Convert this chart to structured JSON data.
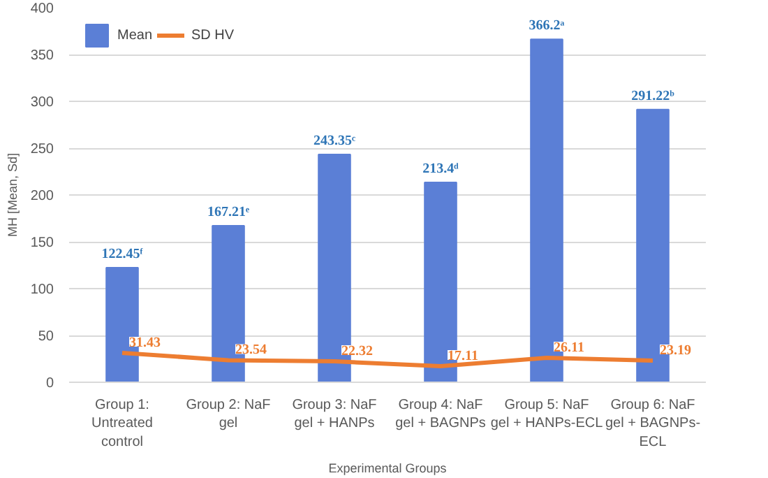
{
  "chart_data": {
    "type": "bar",
    "xlabel": "Experimental Groups",
    "ylabel": "MH [Mean, Sd]",
    "categories": [
      "Group 1:\nUntreated\ncontrol",
      "Group 2: NaF\ngel",
      "Group 3: NaF\ngel + HANPs",
      "Group 4: NaF\ngel + BAGNPs",
      "Group 5: NaF\ngel + HANPs-ECL",
      "Group 6: NaF\ngel + BAGNPs-\nECL"
    ],
    "series": [
      {
        "name": "Mean",
        "color": "#5b7fd6",
        "values": [
          122.45,
          167.21,
          243.35,
          213.4,
          366.2,
          291.22
        ],
        "value_labels": [
          "122.45ᶠ",
          "167.21ᵉ",
          "243.35ᶜ",
          "213.4ᵈ",
          "366.2ᵃ",
          "291.22ᵇ"
        ]
      },
      {
        "name": "SD HV",
        "type": "line",
        "color": "#ed7d31",
        "values": [
          31.43,
          23.54,
          22.32,
          17.11,
          26.11,
          23.19
        ],
        "value_labels": [
          "31.43",
          "23.54",
          "22.32",
          "17.11",
          "26.11",
          "23.19"
        ]
      }
    ],
    "ylim": [
      0,
      400
    ],
    "yticks": [
      0,
      50,
      100,
      150,
      200,
      250,
      300,
      350,
      400
    ],
    "grid": "y",
    "legend": "top left"
  }
}
